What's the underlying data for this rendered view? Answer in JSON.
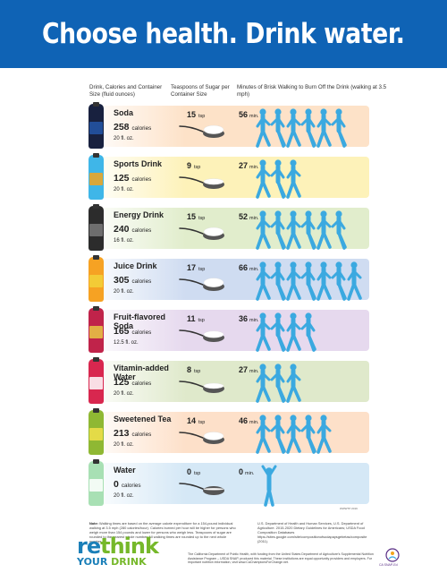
{
  "header": {
    "title": "Choose health. Drink water."
  },
  "columns": {
    "drink": "Drink, Calories and Container Size (fluid ounces)",
    "sugar": "Teaspoons of Sugar per Container Size",
    "walk": "Minutes of Brisk Walking to Burn Off the Drink (walking at 3.5 mph)"
  },
  "units": {
    "tsp": "tsp",
    "min": "min.",
    "calories": "calories"
  },
  "drinks": [
    {
      "name": "Soda",
      "calories": "258",
      "size": "20 fl. oz.",
      "tsp": "15",
      "minutes": "56",
      "walkers": 6,
      "band": "#fde2c8",
      "bottle": "#18213f",
      "label_color": "#2456a8"
    },
    {
      "name": "Sports Drink",
      "calories": "125",
      "size": "20 fl. oz.",
      "tsp": "9",
      "minutes": "27",
      "walkers": 3,
      "band": "#fdf2b9",
      "bottle": "#3fb6e8",
      "label_color": "#f4a51c"
    },
    {
      "name": "Energy Drink",
      "calories": "240",
      "size": "16 fl. oz.",
      "tsp": "15",
      "minutes": "52",
      "walkers": 6,
      "band": "#e1edcc",
      "bottle": "#2c2c2c",
      "label_color": "#7a7a7a"
    },
    {
      "name": "Juice Drink",
      "calories": "305",
      "size": "20 fl. oz.",
      "tsp": "17",
      "minutes": "66",
      "walkers": 7,
      "band": "#cfdcf1",
      "bottle": "#f6a223",
      "label_color": "#f2d23a"
    },
    {
      "name": "Fruit-flavored Soda",
      "calories": "165",
      "size": "12.5 fl. oz.",
      "tsp": "11",
      "minutes": "36",
      "walkers": 4,
      "band": "#e6d9ee",
      "bottle": "#c0234a",
      "label_color": "#e7c844"
    },
    {
      "name": "Vitamin-added Water",
      "calories": "125",
      "size": "20 fl. oz.",
      "tsp": "8",
      "minutes": "27",
      "walkers": 3,
      "band": "#dfe9cb",
      "bottle": "#d8274f",
      "label_color": "#ffffff"
    },
    {
      "name": "Sweetened Tea",
      "calories": "213",
      "size": "20 fl. oz.",
      "tsp": "14",
      "minutes": "46",
      "walkers": 5,
      "band": "#fde0c9",
      "bottle": "#8fb833",
      "label_color": "#f3e04b"
    },
    {
      "name": "Water",
      "calories": "0",
      "size": "20 fl. oz.",
      "tsp": "0",
      "minutes": "0",
      "walkers": 1,
      "band": "#d5e8f6",
      "bottle": "#a8e0b4",
      "label_color": "#ffffff"
    }
  ],
  "colors": {
    "banner": "#0f63b5",
    "walker": "#3ba9e0",
    "logo_blue": "#1a7fb8",
    "logo_green": "#76b82a"
  },
  "footer": {
    "note_label": "Note:",
    "note": "Walking times are based on the average calorie expenditure for a 154-pound individual walking at 3.5 mph (280 calories/hour). Calories burned per hour will be higher for persons who weigh more than 154 pounds and lower for persons who weigh less. Teaspoons of sugar are rounded to the nearest whole number. All walking times are rounded up to the next whole number.",
    "sources": "U.S. Department of Health and Human Services, U.S. Department of Agriculture. 2015-2020 Dietary Guidelines for Americans; USDA Food Composition Databases https://sites.google.com/site/compositionofsodapaysgebetas/composite (2011).",
    "credit": "The California Department of Public Health, with funding from the United States Department of Agriculture's Supplemental Nutrition Assistance Program – USDA SNAP, produced this material. These institutions are equal opportunity providers and employers. For important nutrition information, visit www.CaChampionsForChange.net.",
    "logo_re": "re",
    "logo_think": "think",
    "logo_your": "YOUR",
    "logo_drink": "DRINK",
    "badge_text": "CA SNAP-Ed",
    "tag": "WWWTP 2019"
  }
}
